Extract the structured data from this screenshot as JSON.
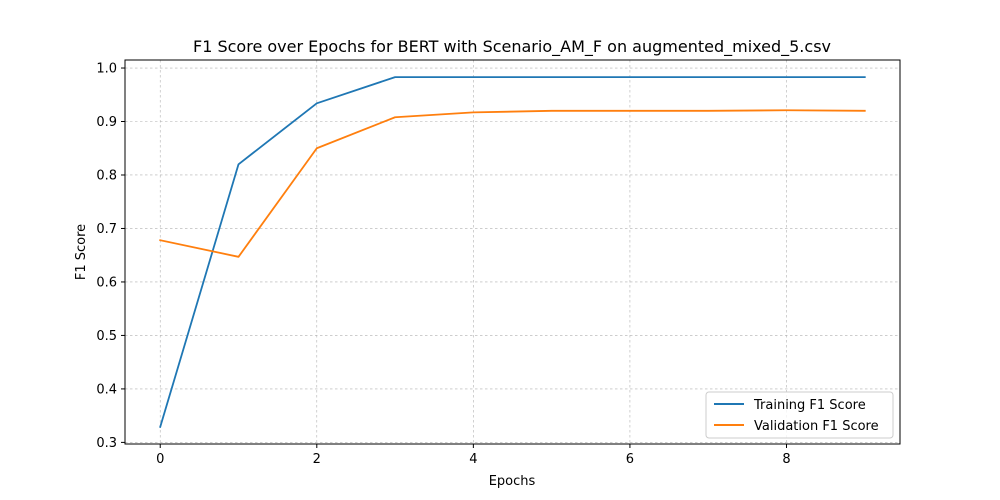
{
  "chart_data": {
    "type": "line",
    "title": "F1 Score over Epochs for BERT with Scenario_AM_F on augmented_mixed_5.csv",
    "xlabel": "Epochs",
    "ylabel": "F1 Score",
    "x": [
      0,
      1,
      2,
      3,
      4,
      5,
      6,
      7,
      8,
      9
    ],
    "xlim": [
      -0.45,
      9.45
    ],
    "ylim": [
      0.297,
      1.015
    ],
    "xticks": [
      0,
      2,
      4,
      6,
      8
    ],
    "yticks": [
      0.3,
      0.4,
      0.5,
      0.6,
      0.7,
      0.8,
      0.9,
      1.0
    ],
    "xtick_labels": [
      "0",
      "2",
      "4",
      "6",
      "8"
    ],
    "ytick_labels": [
      "0.3",
      "0.4",
      "0.5",
      "0.6",
      "0.7",
      "0.8",
      "0.9",
      "1.0"
    ],
    "grid": true,
    "legend_position": "lower-right",
    "series": [
      {
        "name": "Training F1 Score",
        "color": "#1f77b4",
        "values": [
          0.329,
          0.82,
          0.934,
          0.983,
          0.983,
          0.983,
          0.983,
          0.983,
          0.983,
          0.983
        ]
      },
      {
        "name": "Validation F1 Score",
        "color": "#ff7f0e",
        "values": [
          0.678,
          0.647,
          0.85,
          0.908,
          0.917,
          0.92,
          0.92,
          0.92,
          0.921,
          0.92
        ]
      }
    ]
  }
}
